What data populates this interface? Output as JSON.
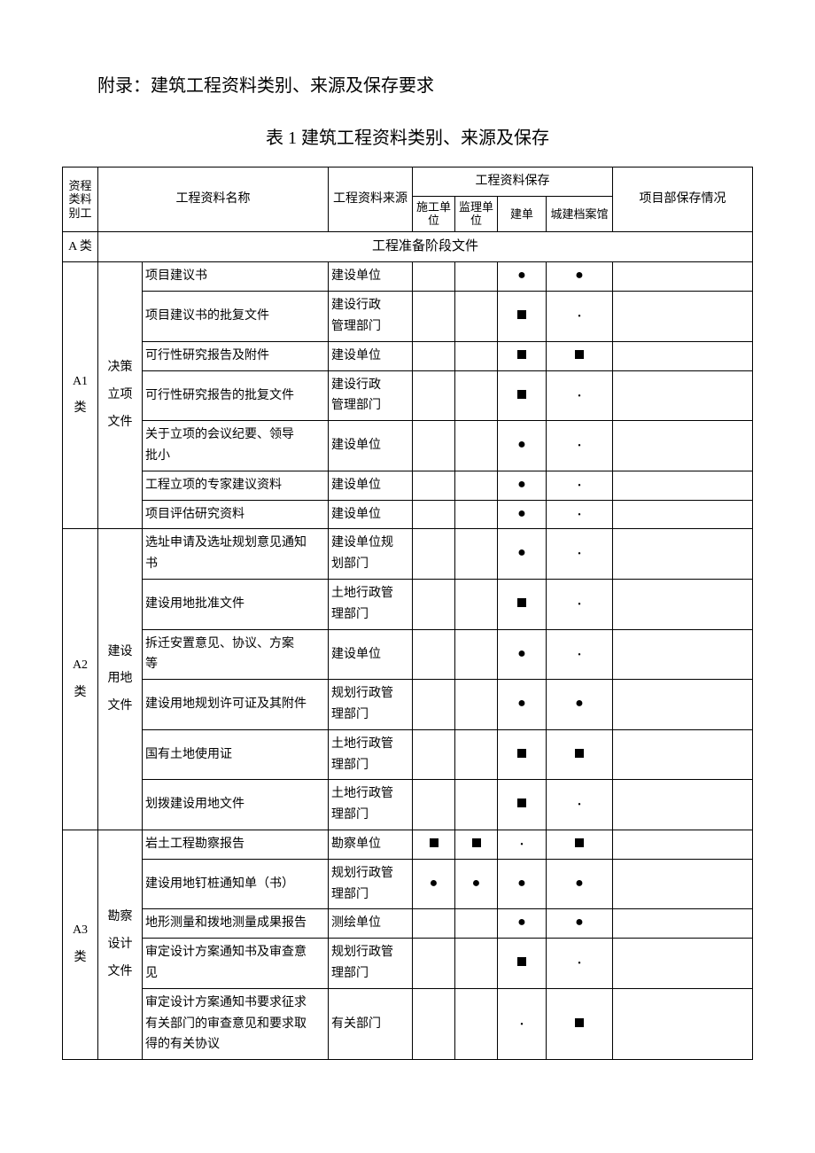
{
  "title": "附录：建筑工程资料类别、来源及保存要求",
  "subtitle": "表 1 建筑工程资料类别、来源及保存",
  "header": {
    "col1": "资料类别",
    "col1b": "工程",
    "name": "工程资料名称",
    "source": "工程资料来源",
    "storage": "工程资料保存",
    "s1": "施工单位",
    "s2": "监理单位",
    "s3": "建单",
    "s4": "城建档案馆",
    "remark": "项目部保存情况"
  },
  "sectionA": {
    "cat": "A 类",
    "label": "工程准备阶段文件"
  },
  "a1": {
    "cat": "A1\n类",
    "group": "决策\n立项\n文件",
    "rows": [
      {
        "name": "项目建议书",
        "src": "建设单位",
        "m": [
          "",
          "",
          "dot",
          "dot"
        ]
      },
      {
        "name": "项目建议书的批复文件",
        "src": "建设行政\n管理部门",
        "m": [
          "",
          "",
          "sq",
          "sdot"
        ]
      },
      {
        "name": "可行性研究报告及附件",
        "src": "建设单位",
        "m": [
          "",
          "",
          "sq",
          "sq"
        ]
      },
      {
        "name": "可行性研究报告的批复文件",
        "src": "建设行政\n管理部门",
        "m": [
          "",
          "",
          "sq",
          "sdot"
        ]
      },
      {
        "name": "关于立项的会议纪要、领导\n批小",
        "src": "建设单位",
        "m": [
          "",
          "",
          "dot",
          "sdot"
        ]
      },
      {
        "name": "工程立项的专家建议资料",
        "src": "建设单位",
        "m": [
          "",
          "",
          "dot",
          "sdot"
        ]
      },
      {
        "name": "项目评估研究资料",
        "src": "建设单位",
        "m": [
          "",
          "",
          "dot",
          "sdot"
        ]
      }
    ]
  },
  "a2": {
    "cat": "A2\n类",
    "group": "建设\n用地\n文件",
    "rows": [
      {
        "name": "选址申请及选址规划意见通知\n书",
        "src": "建设单位规\n划部门",
        "m": [
          "",
          "",
          "dot",
          "sdot"
        ]
      },
      {
        "name": "建设用地批准文件",
        "src": "土地行政管\n理部门",
        "m": [
          "",
          "",
          "sq",
          "sdot"
        ]
      },
      {
        "name": "拆迁安置意见、协议、方案\n等",
        "src": "建设单位",
        "m": [
          "",
          "",
          "dot",
          "sdot"
        ]
      },
      {
        "name": "建设用地规划许可证及其附件",
        "src": "规划行政管\n理部门",
        "m": [
          "",
          "",
          "dot",
          "dot"
        ]
      },
      {
        "name": "国有土地使用证",
        "src": "土地行政管\n理部门",
        "m": [
          "",
          "",
          "sq",
          "sq"
        ]
      },
      {
        "name": "划拨建设用地文件",
        "src": "土地行政管\n理部门",
        "m": [
          "",
          "",
          "sq",
          "sdot"
        ]
      }
    ]
  },
  "a3": {
    "cat": "A3\n类",
    "group": "勘察\n设计\n文件",
    "rows": [
      {
        "name": "岩土工程勘察报告",
        "src": "勘察单位",
        "m": [
          "sq",
          "sq",
          "sdot",
          "sq"
        ]
      },
      {
        "name": "建设用地钉桩通知单（书）",
        "src": "规划行政管\n理部门",
        "m": [
          "dot",
          "dot",
          "dot",
          "dot"
        ]
      },
      {
        "name": "地形测量和拨地测量成果报告",
        "src": "测绘单位",
        "m": [
          "",
          "",
          "dot",
          "dot"
        ]
      },
      {
        "name": "审定设计方案通知书及审查意\n见",
        "src": "规划行政管\n理部门",
        "m": [
          "",
          "",
          "sq",
          "sdot"
        ]
      },
      {
        "name": "审定设计方案通知书要求征求\n有关部门的审查意见和要求取\n得的有关协议",
        "src": "有关部门",
        "m": [
          "",
          "",
          "sdot",
          "sq"
        ]
      }
    ]
  }
}
